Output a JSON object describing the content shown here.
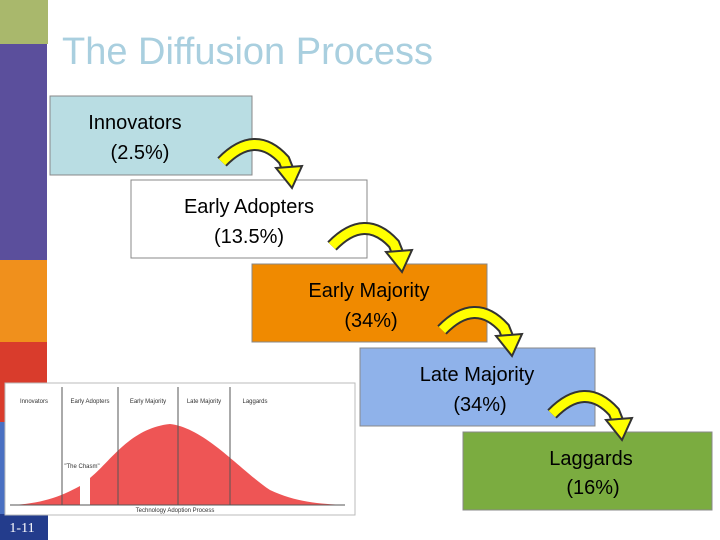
{
  "title": "The Diffusion Process",
  "stages": [
    {
      "name": "Innovators",
      "share": "(2.5%)"
    },
    {
      "name": "Early Adopters",
      "share": "(13.5%)"
    },
    {
      "name": "Early Majority",
      "share": "(34%)"
    },
    {
      "name": "Late Majority",
      "share": "(34%)"
    },
    {
      "name": "Laggards",
      "share": "(16%)"
    }
  ],
  "inset": {
    "labels": [
      "Innovators",
      "Early Adopters",
      "Early Majority",
      "Late Majority",
      "Laggards"
    ],
    "annotation": "\"The Chasm\"",
    "caption": "Technology Adoption Process"
  },
  "slide_number": "1-11"
}
